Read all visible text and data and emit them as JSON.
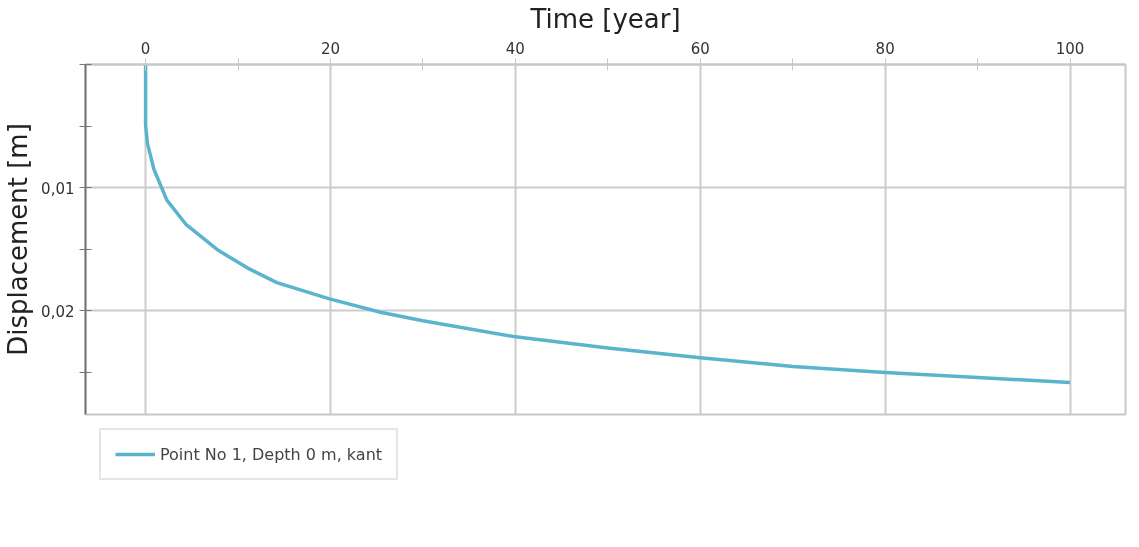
{
  "chart_data": {
    "type": "line",
    "xlabel": "Time [year]",
    "ylabel": "Displacement [m]",
    "x": [
      0,
      0,
      0.2,
      0.9,
      2.3,
      4.4,
      7.9,
      11,
      14.2,
      19.8,
      25.4,
      30,
      40,
      50,
      60,
      70,
      80,
      90,
      100
    ],
    "series": [
      {
        "name": "Point No 1, Depth 0 m, kant",
        "color": "#5ab4cc",
        "values": [
          0,
          0.0049,
          0.0064,
          0.0085,
          0.011,
          0.013,
          0.0151,
          0.0165,
          0.0177,
          0.019,
          0.0201,
          0.0208,
          0.0221,
          0.023,
          0.0238,
          0.0245,
          0.025,
          0.0254,
          0.0258
        ]
      }
    ],
    "xlim": [
      -6.5,
      106
    ],
    "ylim": [
      0.0284,
      0
    ],
    "xticks": [
      0,
      {
        "value": 10,
        "label": null
      },
      20,
      {
        "value": 30,
        "label": null
      },
      40,
      {
        "value": 50,
        "label": null
      },
      60,
      {
        "value": 70,
        "label": null
      },
      80,
      {
        "value": 90,
        "label": null
      },
      100
    ],
    "yticks": [
      {
        "value": 0,
        "label": null
      },
      {
        "value": 0.005,
        "label": null
      },
      {
        "value": 0.01,
        "label": "0,01"
      },
      {
        "value": 0.015,
        "label": null
      },
      {
        "value": 0.02,
        "label": "0,02"
      },
      {
        "value": 0.025,
        "label": null
      }
    ],
    "grid": true,
    "legend": "bottom left",
    "marker": "none",
    "line_style": "solid"
  }
}
